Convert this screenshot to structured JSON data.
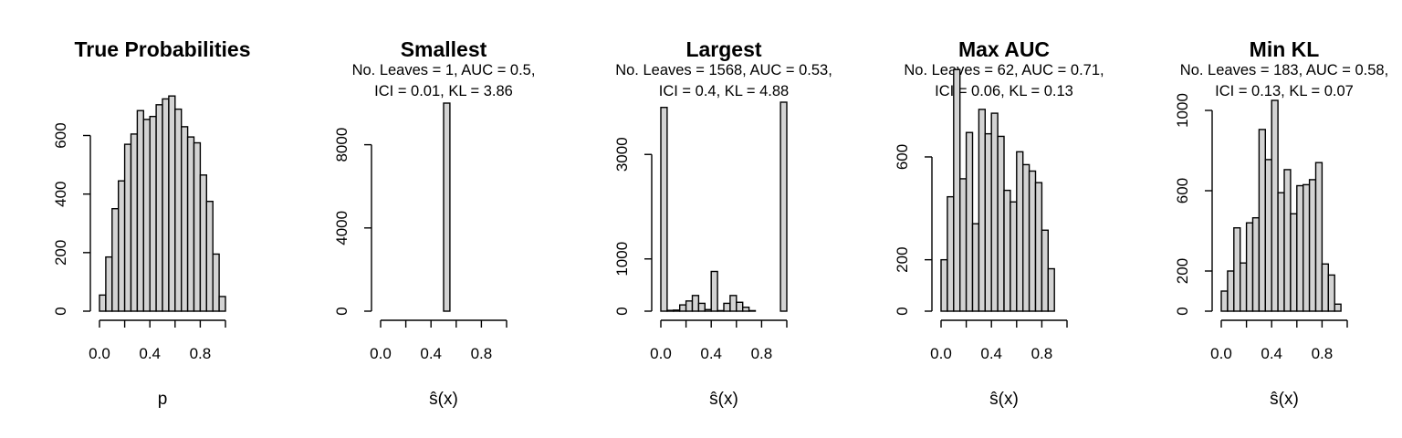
{
  "chart_data": [
    {
      "type": "bar",
      "title": "True Probabilities",
      "subtitle_lines": [],
      "xlabel": "p",
      "ylabel": "",
      "bin_width": 0.05,
      "xlim": [
        0,
        1
      ],
      "ylim": [
        0,
        720
      ],
      "x_ticks": [
        0.0,
        0.4,
        0.8
      ],
      "x_tick_labels": [
        "0.0",
        "0.4",
        "0.8"
      ],
      "y_ticks": [
        0,
        200,
        400,
        600
      ],
      "y_tick_labels": [
        "0",
        "200",
        "400",
        "600"
      ],
      "values": [
        55,
        185,
        350,
        445,
        570,
        605,
        685,
        655,
        665,
        705,
        725,
        735,
        690,
        630,
        595,
        575,
        465,
        375,
        195,
        50
      ]
    },
    {
      "type": "bar",
      "title": "Smallest",
      "subtitle_lines": [
        "No. Leaves = 1, AUC = 0.5,",
        "ICI = 0.01, KL = 3.86"
      ],
      "xlabel": "ŝ(x)",
      "ylabel": "",
      "bin_width": 0.05,
      "xlim": [
        0,
        1
      ],
      "ylim": [
        0,
        10000
      ],
      "x_ticks": [
        0.0,
        0.4,
        0.8
      ],
      "x_tick_labels": [
        "0.0",
        "0.4",
        "0.8"
      ],
      "y_ticks": [
        0,
        4000,
        8000
      ],
      "y_tick_labels": [
        "0",
        "4000",
        "8000"
      ],
      "values": [
        0,
        0,
        0,
        0,
        0,
        0,
        0,
        0,
        0,
        0,
        10000,
        0,
        0,
        0,
        0,
        0,
        0,
        0,
        0,
        0
      ]
    },
    {
      "type": "bar",
      "title": "Largest",
      "subtitle_lines": [
        "No. Leaves = 1568, AUC = 0.53,",
        "ICI = 0.4, KL = 4.88"
      ],
      "xlabel": "ŝ(x)",
      "ylabel": "",
      "bin_width": 0.05,
      "xlim": [
        0,
        1
      ],
      "ylim": [
        0,
        4000
      ],
      "x_ticks": [
        0.0,
        0.4,
        0.8
      ],
      "x_tick_labels": [
        "0.0",
        "0.4",
        "0.8"
      ],
      "y_ticks": [
        0,
        1000,
        3000
      ],
      "y_tick_labels": [
        "0",
        "1000",
        "3000"
      ],
      "values": [
        3900,
        15,
        20,
        120,
        195,
        300,
        150,
        30,
        760,
        10,
        150,
        300,
        170,
        75,
        10,
        0,
        0,
        0,
        0,
        4000
      ]
    },
    {
      "type": "bar",
      "title": "Max AUC",
      "subtitle_lines": [
        "No. Leaves = 62, AUC = 0.71,",
        "ICI = 0.06, KL = 0.13"
      ],
      "xlabel": "ŝ(x)",
      "ylabel": "",
      "bin_width": 0.05,
      "xlim": [
        0,
        1
      ],
      "ylim": [
        0,
        820
      ],
      "x_ticks": [
        0.0,
        0.4,
        0.8
      ],
      "x_tick_labels": [
        "0.0",
        "0.4",
        "0.8"
      ],
      "y_ticks": [
        0,
        200,
        600
      ],
      "y_tick_labels": [
        "0",
        "200",
        "600"
      ],
      "values": [
        200,
        445,
        940,
        515,
        695,
        340,
        785,
        690,
        770,
        680,
        470,
        425,
        620,
        570,
        545,
        500,
        315,
        165
      ]
    },
    {
      "type": "bar",
      "title": "Min KL",
      "subtitle_lines": [
        "No. Leaves = 183, AUC = 0.58,",
        "ICI = 0.13, KL = 0.07"
      ],
      "xlabel": "ŝ(x)",
      "ylabel": "",
      "bin_width": 0.05,
      "xlim": [
        0,
        1
      ],
      "ylim": [
        0,
        1050
      ],
      "x_ticks": [
        0.0,
        0.4,
        0.8
      ],
      "x_tick_labels": [
        "0.0",
        "0.4",
        "0.8"
      ],
      "y_ticks": [
        0,
        200,
        600,
        1000
      ],
      "y_tick_labels": [
        "0",
        "200",
        "600",
        "1000"
      ],
      "values": [
        100,
        200,
        415,
        240,
        440,
        465,
        905,
        755,
        1050,
        590,
        705,
        485,
        625,
        630,
        655,
        740,
        235,
        180,
        35
      ]
    }
  ]
}
